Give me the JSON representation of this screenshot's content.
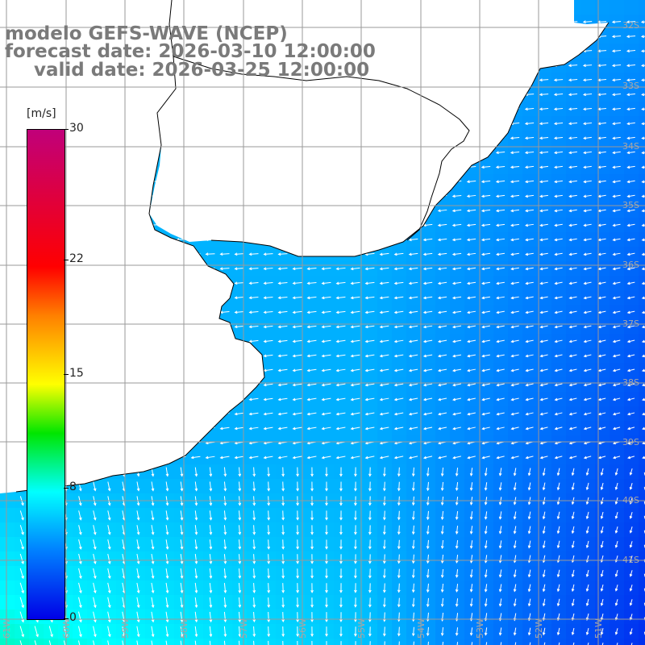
{
  "title": {
    "line1": "modelo GEFS-WAVE (NCEP)",
    "line2": "forecast date: 2026-03-10 12:00:00",
    "line3": "valid date: 2026-03-25 12:00:00"
  },
  "colorbar": {
    "units": "[m/s]",
    "ticks": [
      {
        "label": "30",
        "value": 30
      },
      {
        "label": "22",
        "value": 22
      },
      {
        "label": "15",
        "value": 15
      },
      {
        "label": "8",
        "value": 8
      },
      {
        "label": "0",
        "value": 0
      }
    ],
    "range": [
      0,
      30
    ]
  },
  "lat_labels": [
    "32S",
    "33S",
    "34S",
    "35S",
    "36S",
    "37S",
    "38S",
    "39S",
    "40S",
    "41S"
  ],
  "lon_labels": [
    "61W",
    "60W",
    "59W",
    "58W",
    "57W",
    "56W",
    "55W",
    "54W",
    "53W",
    "52W",
    "51W"
  ],
  "colors": {
    "land": "#ffffff",
    "coast": "#000000",
    "grid": "#9a9a9a",
    "title": "#7a7a7a",
    "arrow": "#ffffff"
  }
}
